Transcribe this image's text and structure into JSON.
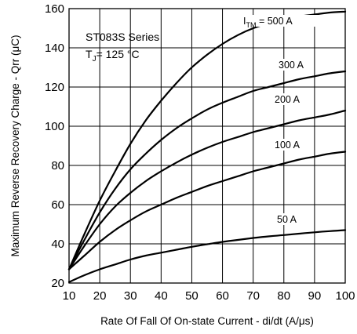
{
  "chart_data": {
    "type": "line",
    "title": "",
    "xlabel": "Rate Of Fall Of On-state Current - di/dt (A/μs)",
    "ylabel": "Maximum Reverse Recovery Charge - Qrr (μC)",
    "xlim": [
      10,
      100
    ],
    "ylim": [
      20,
      160
    ],
    "xticks": [
      10,
      20,
      30,
      40,
      50,
      60,
      70,
      80,
      90,
      100
    ],
    "yticks": [
      20,
      40,
      60,
      80,
      100,
      120,
      140,
      160
    ],
    "grid": true,
    "annotations": {
      "series_line1": "ST083S Series",
      "series_line2_prefix": "T",
      "series_line2_sub": "J",
      "series_line2_suffix": "= 125 °C",
      "itm_prefix": "I",
      "itm_sub": "TM"
    },
    "x": [
      10,
      15,
      20,
      25,
      30,
      35,
      40,
      45,
      50,
      55,
      60,
      65,
      70,
      75,
      80,
      85,
      90,
      95,
      100
    ],
    "series": [
      {
        "name": "= 500 A",
        "values": [
          27,
          45,
          62,
          77,
          91,
          103,
          113,
          122,
          130,
          136.5,
          142,
          146.5,
          150,
          152.5,
          154.5,
          156,
          157,
          158,
          158.5
        ]
      },
      {
        "name": "300 A",
        "values": [
          27,
          42,
          56,
          68,
          78,
          86,
          93,
          99,
          104,
          108.5,
          112,
          115,
          118,
          120,
          122,
          124,
          125.5,
          127,
          128
        ]
      },
      {
        "name": "200 A",
        "values": [
          27,
          39,
          50,
          59,
          66,
          72,
          77,
          81.5,
          85.5,
          89,
          92,
          94.5,
          97,
          99,
          101,
          103,
          104.5,
          106,
          108
        ]
      },
      {
        "name": "100 A",
        "values": [
          27,
          34,
          41,
          47,
          52,
          56.5,
          60,
          63.5,
          66.5,
          69.5,
          72,
          74.5,
          77,
          79,
          81,
          83,
          84.5,
          86,
          87
        ]
      },
      {
        "name": "50 A",
        "values": [
          20.5,
          24,
          27,
          29.5,
          32,
          34,
          35.5,
          37,
          38.5,
          39.8,
          41,
          42,
          43,
          43.8,
          44.5,
          45.2,
          45.9,
          46.5,
          47
        ]
      }
    ]
  }
}
